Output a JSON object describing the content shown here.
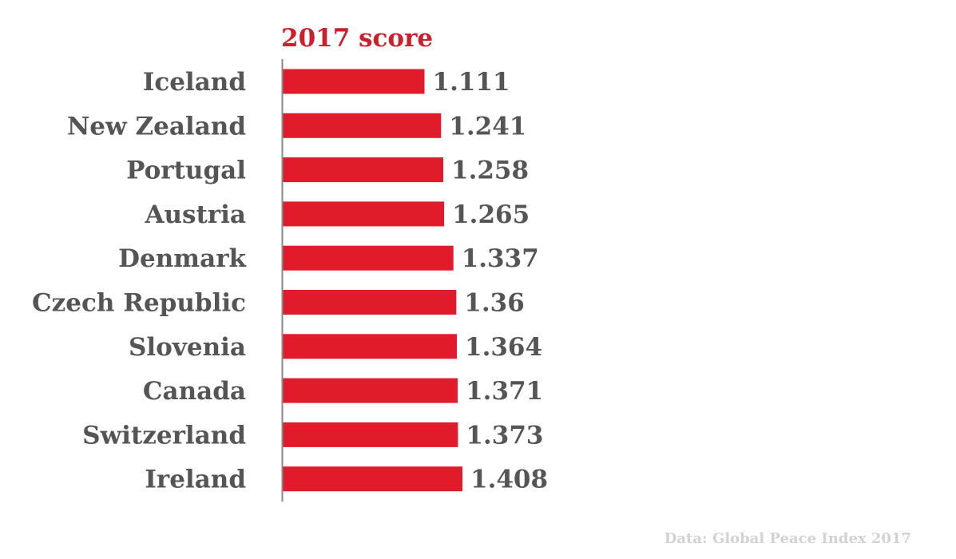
{
  "chart_data": {
    "type": "bar",
    "orientation": "horizontal",
    "title": "2017 score",
    "source": "Data: Global Peace Index 2017",
    "categories": [
      "Iceland",
      "New Zealand",
      "Portugal",
      "Austria",
      "Denmark",
      "Czech Republic",
      "Slovenia",
      "Canada",
      "Switzerland",
      "Ireland"
    ],
    "values": [
      1.111,
      1.241,
      1.258,
      1.265,
      1.337,
      1.36,
      1.364,
      1.371,
      1.373,
      1.408
    ],
    "value_labels": [
      "1.111",
      "1.241",
      "1.258",
      "1.265",
      "1.337",
      "1.36",
      "1.364",
      "1.371",
      "1.373",
      "1.408"
    ],
    "xlim": [
      0,
      1.408
    ],
    "grid": false,
    "legend": "none",
    "colors": {
      "bar": "#e01b2a",
      "title": "#cc1f2b",
      "text": "#555555",
      "source": "#d2d2d2",
      "axis": "#888888"
    }
  }
}
